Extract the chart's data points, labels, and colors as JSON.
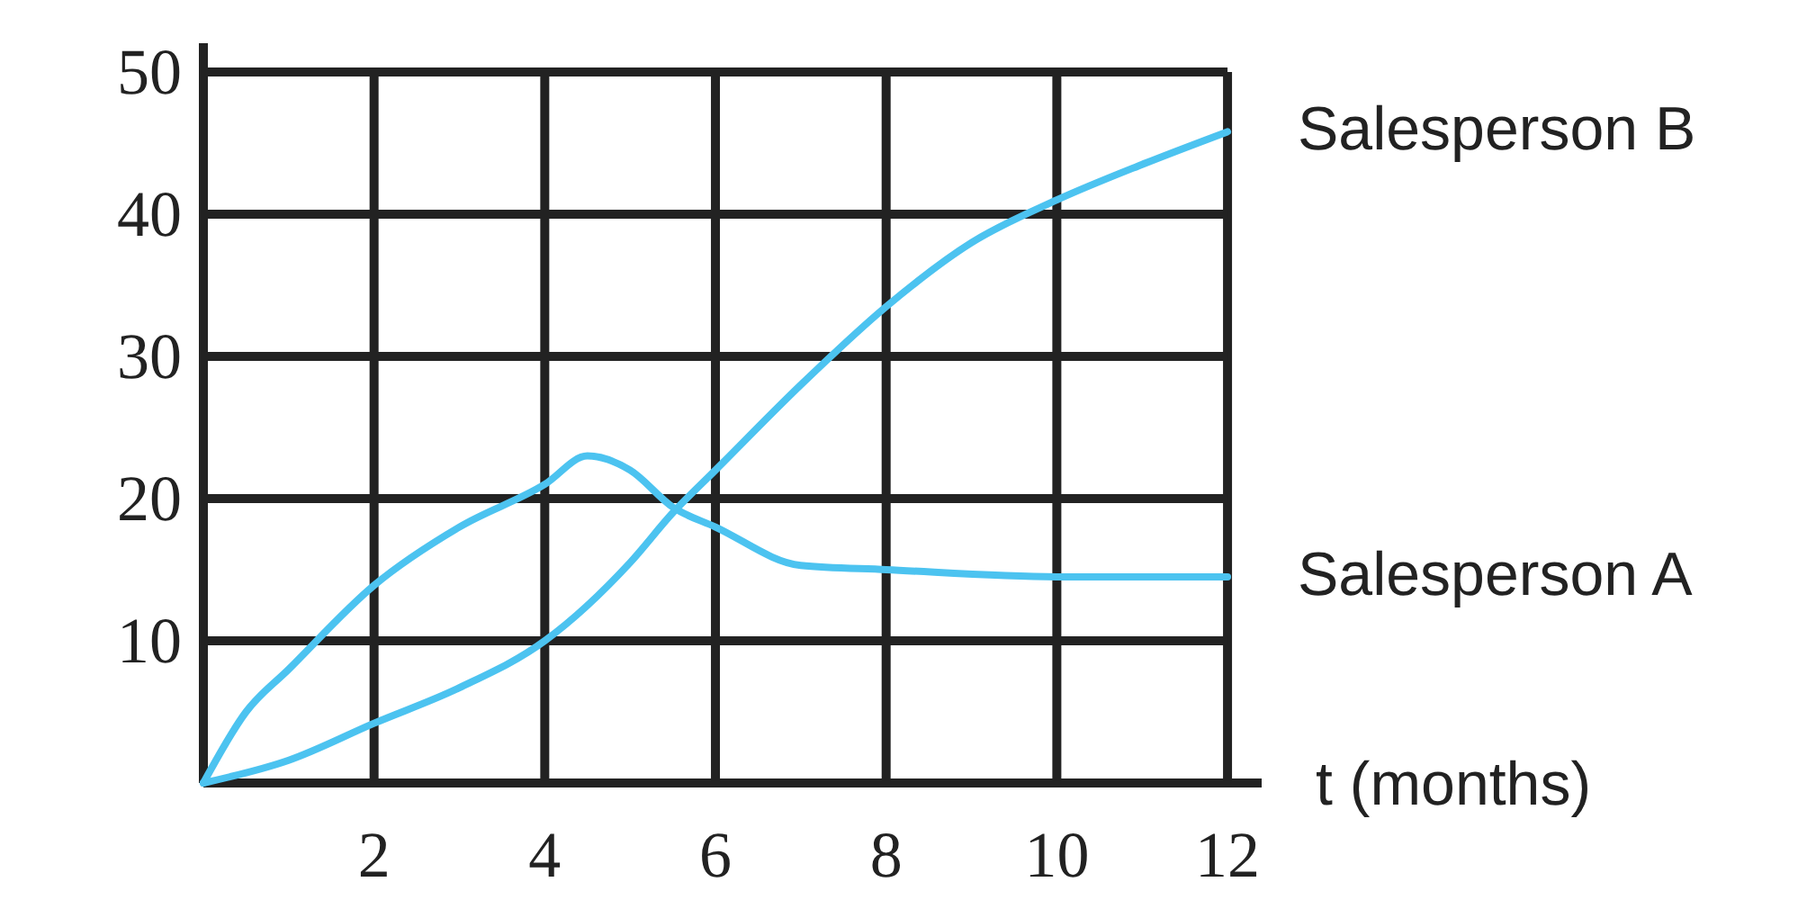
{
  "chart_data": {
    "type": "line",
    "xlabel": "t (months)",
    "xlim": [
      0,
      12.4
    ],
    "ylim": [
      0,
      50
    ],
    "xticks": [
      2,
      4,
      6,
      8,
      10,
      12
    ],
    "yticks": [
      10,
      20,
      30,
      40,
      50
    ],
    "grid": true,
    "marker": "none",
    "line_style": "solid",
    "series": [
      {
        "name": "Salesperson B",
        "color": "#4cc3f0",
        "x": [
          0,
          1,
          2,
          3,
          4,
          5,
          5.5,
          6,
          7,
          8,
          9,
          10,
          11,
          12
        ],
        "values": [
          0,
          1.6,
          4.2,
          6.7,
          10,
          15.5,
          19,
          22,
          28,
          33.5,
          38,
          41,
          43.5,
          45.8
        ]
      },
      {
        "name": "Salesperson A",
        "color": "#4cc3f0",
        "x": [
          0,
          0.5,
          1,
          2,
          3,
          4,
          4.5,
          5,
          5.5,
          6,
          7,
          8,
          10,
          12
        ],
        "values": [
          0,
          5,
          8,
          13.9,
          18,
          21,
          23,
          22,
          19.4,
          18,
          15.3,
          15,
          14.5,
          14.5
        ]
      }
    ]
  }
}
